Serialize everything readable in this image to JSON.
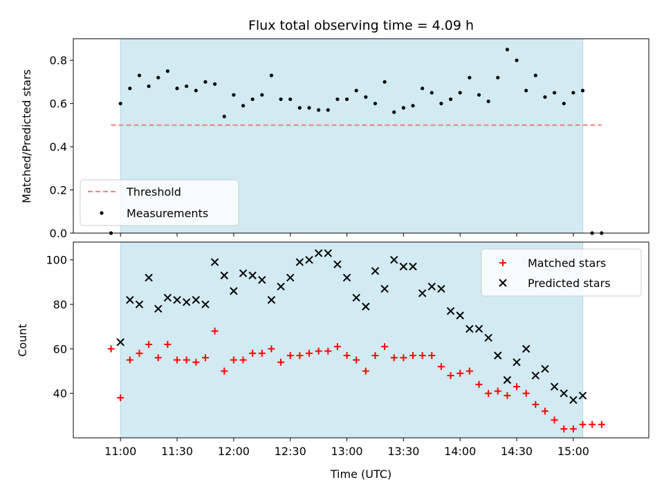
{
  "chart_data": [
    {
      "type": "scatter",
      "title": "Flux total observing time = 4.09 h",
      "xlabel": "",
      "ylabel": "Matched/Predicted stars",
      "ylim": [
        0,
        0.9
      ],
      "yticks": [
        "0.0",
        "0.2",
        "0.4",
        "0.6",
        "0.8"
      ],
      "ytick_values": [
        0,
        0.2,
        0.4,
        0.6,
        0.8
      ],
      "xticks_labeled": false,
      "shaded_span": [
        "11:00",
        "15:05"
      ],
      "shade_color": "#add8e6",
      "threshold": {
        "name": "Threshold",
        "value": 0.5,
        "x_range": [
          "10:55",
          "15:15"
        ],
        "color": "#f08080",
        "style": "dashed"
      },
      "series": [
        {
          "name": "Measurements",
          "marker": "dot",
          "color": "#000000",
          "x": [
            "10:55",
            "11:00",
            "11:05",
            "11:10",
            "11:15",
            "11:20",
            "11:25",
            "11:30",
            "11:35",
            "11:40",
            "11:45",
            "11:50",
            "11:55",
            "12:00",
            "12:05",
            "12:10",
            "12:15",
            "12:20",
            "12:25",
            "12:30",
            "12:35",
            "12:40",
            "12:45",
            "12:50",
            "12:55",
            "13:00",
            "13:05",
            "13:10",
            "13:15",
            "13:20",
            "13:25",
            "13:30",
            "13:35",
            "13:40",
            "13:45",
            "13:50",
            "13:55",
            "14:00",
            "14:05",
            "14:10",
            "14:15",
            "14:20",
            "14:25",
            "14:30",
            "14:35",
            "14:40",
            "14:45",
            "14:50",
            "14:55",
            "15:00",
            "15:05",
            "15:10",
            "15:15"
          ],
          "y": [
            0.0,
            0.6,
            0.67,
            0.73,
            0.68,
            0.72,
            0.75,
            0.67,
            0.68,
            0.66,
            0.7,
            0.69,
            0.54,
            0.64,
            0.59,
            0.62,
            0.64,
            0.73,
            0.62,
            0.62,
            0.58,
            0.58,
            0.57,
            0.57,
            0.62,
            0.62,
            0.66,
            0.63,
            0.6,
            0.7,
            0.56,
            0.58,
            0.59,
            0.67,
            0.65,
            0.6,
            0.62,
            0.65,
            0.72,
            0.64,
            0.61,
            0.72,
            0.85,
            0.8,
            0.66,
            0.73,
            0.63,
            0.65,
            0.6,
            0.65,
            0.66,
            0.0,
            0.0
          ]
        }
      ],
      "legend": "lower-left"
    },
    {
      "type": "scatter",
      "title": "",
      "xlabel": "Time (UTC)",
      "ylabel": "Count",
      "ylim": [
        20,
        108
      ],
      "yticks": [
        "40",
        "60",
        "80",
        "100"
      ],
      "ytick_values": [
        40,
        60,
        80,
        100
      ],
      "xlim": [
        "10:35",
        "15:40"
      ],
      "xticks": [
        "11:00",
        "11:30",
        "12:00",
        "12:30",
        "13:00",
        "13:30",
        "14:00",
        "14:30",
        "15:00"
      ],
      "shaded_span": [
        "11:00",
        "15:05"
      ],
      "shade_color": "#add8e6",
      "series": [
        {
          "name": "Matched stars",
          "marker": "plus",
          "color": "#ff0000",
          "x": [
            "10:55",
            "11:00",
            "11:05",
            "11:10",
            "11:15",
            "11:20",
            "11:25",
            "11:30",
            "11:35",
            "11:40",
            "11:45",
            "11:50",
            "11:55",
            "12:00",
            "12:05",
            "12:10",
            "12:15",
            "12:20",
            "12:25",
            "12:30",
            "12:35",
            "12:40",
            "12:45",
            "12:50",
            "12:55",
            "13:00",
            "13:05",
            "13:10",
            "13:15",
            "13:20",
            "13:25",
            "13:30",
            "13:35",
            "13:40",
            "13:45",
            "13:50",
            "13:55",
            "14:00",
            "14:05",
            "14:10",
            "14:15",
            "14:20",
            "14:25",
            "14:30",
            "14:35",
            "14:40",
            "14:45",
            "14:50",
            "14:55",
            "15:00",
            "15:05",
            "15:10",
            "15:15"
          ],
          "y": [
            60,
            38,
            55,
            58,
            62,
            56,
            62,
            55,
            55,
            54,
            56,
            68,
            50,
            55,
            55,
            58,
            58,
            60,
            54,
            57,
            57,
            58,
            59,
            59,
            61,
            57,
            55,
            50,
            57,
            61,
            56,
            56,
            57,
            57,
            57,
            52,
            48,
            49,
            50,
            44,
            40,
            41,
            39,
            43,
            40,
            35,
            32,
            28,
            24,
            24,
            26,
            26,
            26
          ]
        },
        {
          "name": "Predicted stars",
          "marker": "x",
          "color": "#000000",
          "x": [
            "11:00",
            "11:05",
            "11:10",
            "11:15",
            "11:20",
            "11:25",
            "11:30",
            "11:35",
            "11:40",
            "11:45",
            "11:50",
            "11:55",
            "12:00",
            "12:05",
            "12:10",
            "12:15",
            "12:20",
            "12:25",
            "12:30",
            "12:35",
            "12:40",
            "12:45",
            "12:50",
            "12:55",
            "13:00",
            "13:05",
            "13:10",
            "13:15",
            "13:20",
            "13:25",
            "13:30",
            "13:35",
            "13:40",
            "13:45",
            "13:50",
            "13:55",
            "14:00",
            "14:05",
            "14:10",
            "14:15",
            "14:20",
            "14:25",
            "14:30",
            "14:35",
            "14:40",
            "14:45",
            "14:50",
            "14:55",
            "15:00",
            "15:05"
          ],
          "y": [
            63,
            82,
            80,
            92,
            78,
            83,
            82,
            81,
            82,
            80,
            99,
            93,
            86,
            94,
            93,
            91,
            82,
            88,
            92,
            99,
            100,
            103,
            103,
            98,
            92,
            83,
            79,
            95,
            87,
            100,
            97,
            97,
            85,
            88,
            87,
            77,
            75,
            69,
            69,
            65,
            57,
            46,
            54,
            60,
            48,
            51,
            43,
            40,
            37,
            39
          ]
        }
      ],
      "legend": "upper-right"
    }
  ]
}
